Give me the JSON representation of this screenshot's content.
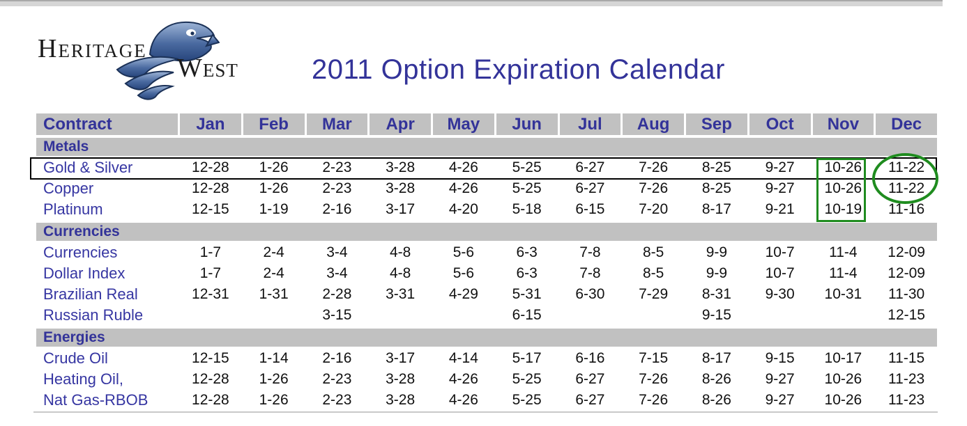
{
  "logo": {
    "name_part1": "Heritage",
    "name_part2": "West"
  },
  "title": "2011 Option Expiration Calendar",
  "table": {
    "columns": [
      "Contract",
      "Jan",
      "Feb",
      "Mar",
      "Apr",
      "May",
      "Jun",
      "Jul",
      "Aug",
      "Sep",
      "Oct",
      "Nov",
      "Dec"
    ],
    "sections": [
      {
        "name": "Metals",
        "rows": [
          {
            "label": "Gold & Silver",
            "values": [
              "12-28",
              "1-26",
              "2-23",
              "3-28",
              "4-26",
              "5-25",
              "6-27",
              "7-26",
              "8-25",
              "9-27",
              "10-26",
              "11-22"
            ]
          },
          {
            "label": "Copper",
            "values": [
              "12-28",
              "1-26",
              "2-23",
              "3-28",
              "4-26",
              "5-25",
              "6-27",
              "7-26",
              "8-25",
              "9-27",
              "10-26",
              "11-22"
            ]
          },
          {
            "label": "Platinum",
            "values": [
              "12-15",
              "1-19",
              "2-16",
              "3-17",
              "4-20",
              "5-18",
              "6-15",
              "7-20",
              "8-17",
              "9-21",
              "10-19",
              "11-16"
            ]
          }
        ]
      },
      {
        "name": "Currencies",
        "rows": [
          {
            "label": "Currencies",
            "values": [
              "1-7",
              "2-4",
              "3-4",
              "4-8",
              "5-6",
              "6-3",
              "7-8",
              "8-5",
              "9-9",
              "10-7",
              "11-4",
              "12-09"
            ]
          },
          {
            "label": "Dollar Index",
            "values": [
              "1-7",
              "2-4",
              "3-4",
              "4-8",
              "5-6",
              "6-3",
              "7-8",
              "8-5",
              "9-9",
              "10-7",
              "11-4",
              "12-09"
            ]
          },
          {
            "label": "Brazilian Real",
            "values": [
              "12-31",
              "1-31",
              "2-28",
              "3-31",
              "4-29",
              "5-31",
              "6-30",
              "7-29",
              "8-31",
              "9-30",
              "10-31",
              "11-30"
            ]
          },
          {
            "label": "Russian Ruble",
            "values": [
              "",
              "",
              "3-15",
              "",
              "",
              "6-15",
              "",
              "",
              "9-15",
              "",
              "",
              "12-15"
            ]
          }
        ]
      },
      {
        "name": "Energies",
        "rows": [
          {
            "label": "Crude Oil",
            "values": [
              "12-15",
              "1-14",
              "2-16",
              "3-17",
              "4-14",
              "5-17",
              "6-16",
              "7-15",
              "8-17",
              "9-15",
              "10-17",
              "11-15"
            ]
          },
          {
            "label": "Heating Oil,",
            "values": [
              "12-28",
              "1-26",
              "2-23",
              "3-28",
              "4-26",
              "5-25",
              "6-27",
              "7-26",
              "8-26",
              "9-27",
              "10-26",
              "11-23"
            ]
          },
          {
            "label": "Nat Gas-RBOB",
            "values": [
              "12-28",
              "1-26",
              "2-23",
              "3-28",
              "4-26",
              "5-25",
              "6-27",
              "7-26",
              "8-26",
              "9-27",
              "10-26",
              "11-23"
            ]
          }
        ]
      }
    ]
  },
  "annotations": {
    "black_box": {
      "target": "Gold & Silver row",
      "color": "#000000"
    },
    "green_box": {
      "target": "Nov column, Metals rows (10-26, 10-26, 10-19)",
      "color": "#1f8c1f"
    },
    "green_circle": {
      "target": "Dec 11-22 values (Gold & Silver, Copper)",
      "color": "#1f8c1f"
    }
  },
  "colors": {
    "accent_blue": "#333399",
    "header_gray": "#c1c1c1",
    "annotation_green": "#1f8c1f",
    "logo_blue": "#3d5e94"
  }
}
